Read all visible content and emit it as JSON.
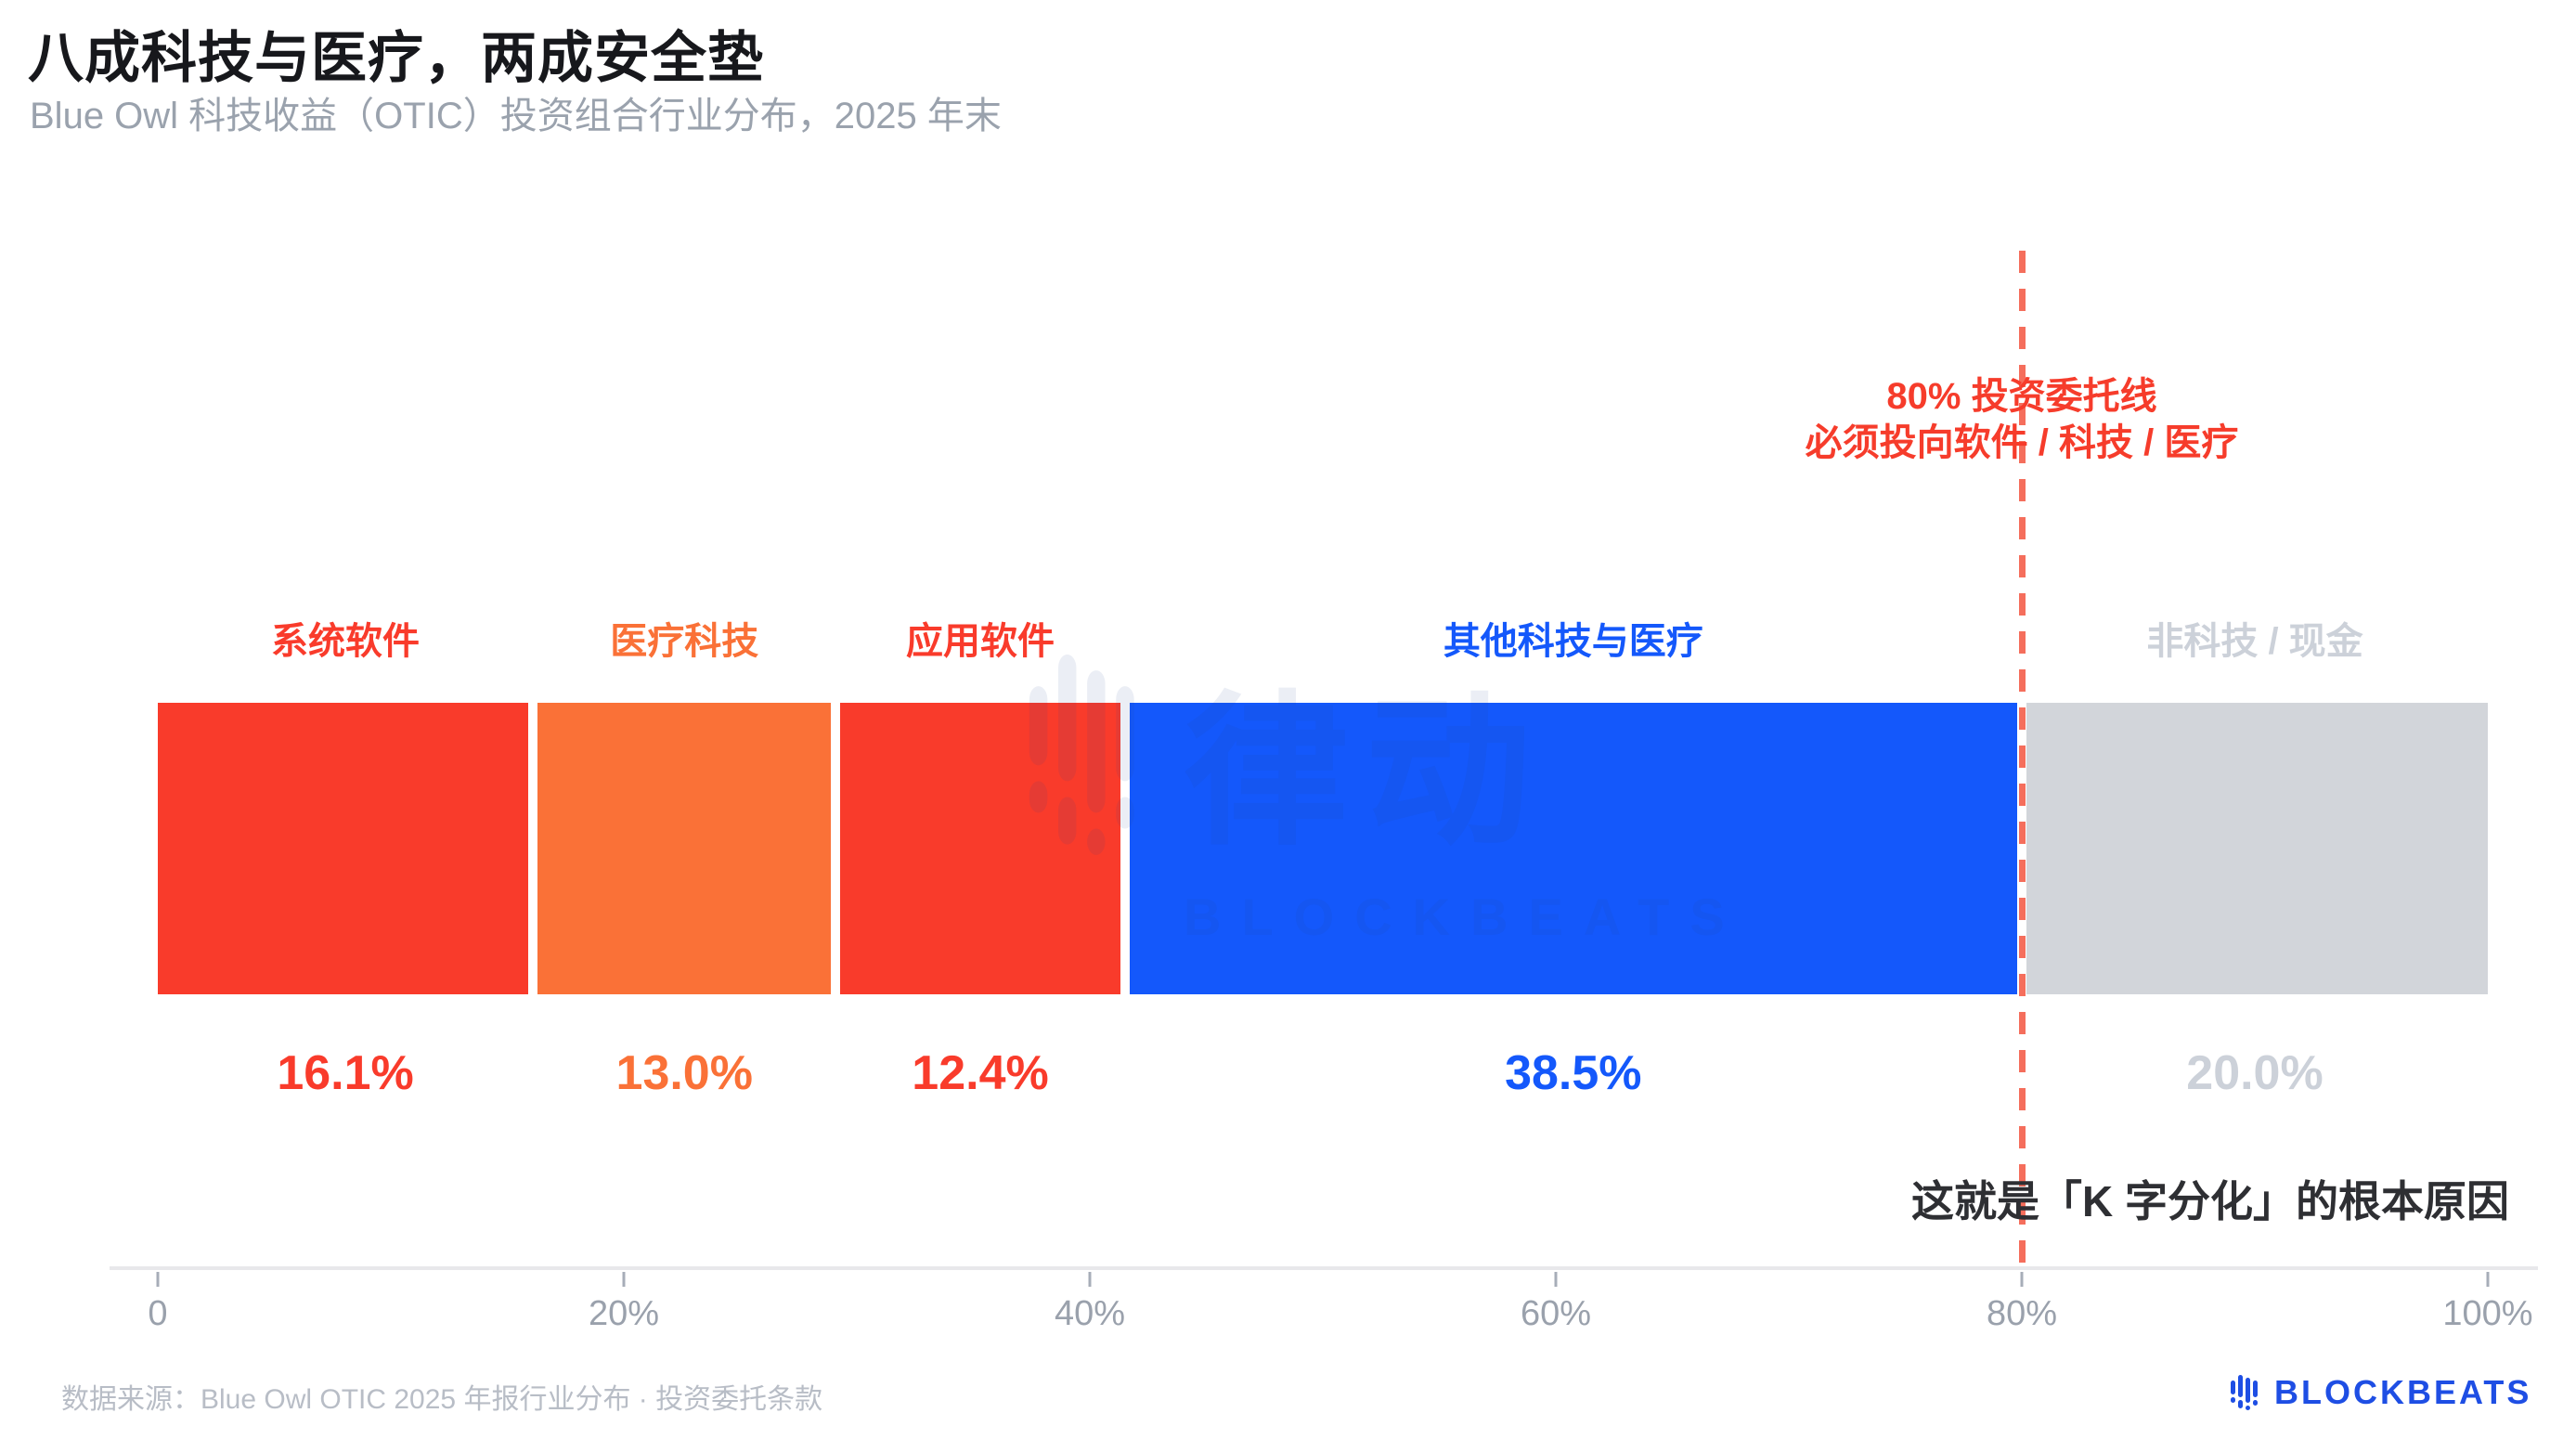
{
  "title": "八成科技与医疗，两成安全垫",
  "subtitle": "Blue Owl 科技收益（OTIC）投资组合行业分布，2025 年末",
  "annotation": {
    "line1": "80% 投资委托线",
    "line2": "必须投向软件 / 科技 / 医疗"
  },
  "caption": "这就是「K 字分化」的根本原因",
  "axis": {
    "tick_labels": [
      "0",
      "20%",
      "40%",
      "60%",
      "80%",
      "100%"
    ]
  },
  "footer": {
    "source": "数据来源：Blue Owl OTIC 2025 年报行业分布 · 投资委托条款",
    "brand": "BLOCKBEATS"
  },
  "watermark": {
    "cn": "律动",
    "en": "BLOCKBEATS"
  },
  "colors": {
    "red": "#f93b2b",
    "orange": "#fa7137",
    "blue": "#1458fb",
    "gray_bar": "#d2d5da",
    "gray_text": "#ccd1d9",
    "reference_line": "#f4614e",
    "title": "#17181c",
    "subtitle": "#9aa2ad",
    "brand_blue": "#1e4ee4"
  },
  "chart_data": {
    "type": "bar",
    "variant": "horizontal-stacked-100pct",
    "title": "八成科技与医疗，两成安全垫",
    "subtitle": "Blue Owl 科技收益（OTIC）投资组合行业分布，2025 年末",
    "xlabel": "",
    "ylabel": "",
    "xlim": [
      0,
      100
    ],
    "x_ticks": [
      0,
      20,
      40,
      60,
      80,
      100
    ],
    "grid": false,
    "legend_position": "labels-above-segments",
    "segments": [
      {
        "label": "系统软件",
        "value": 16.1,
        "display": "16.1%",
        "color": "#f93b2b",
        "text_color": "#f93b2b"
      },
      {
        "label": "医疗科技",
        "value": 13.0,
        "display": "13.0%",
        "color": "#fa7137",
        "text_color": "#fa7137"
      },
      {
        "label": "应用软件",
        "value": 12.4,
        "display": "12.4%",
        "color": "#f93b2b",
        "text_color": "#f93b2b"
      },
      {
        "label": "其他科技与医疗",
        "value": 38.5,
        "display": "38.5%",
        "color": "#1458fb",
        "text_color": "#1458fb"
      },
      {
        "label": "非科技 / 现金",
        "value": 20.0,
        "display": "20.0%",
        "color": "#d2d5da",
        "text_color": "#ccd1d9"
      }
    ],
    "reference_line": {
      "x": 80,
      "style": "dashed",
      "color": "#f4614e",
      "annotation": [
        "80% 投资委托线",
        "必须投向软件 / 科技 / 医疗"
      ]
    },
    "annotation_below": "这就是「K 字分化」的根本原因",
    "source": "数据来源：Blue Owl OTIC 2025 年报行业分布 · 投资委托条款"
  }
}
